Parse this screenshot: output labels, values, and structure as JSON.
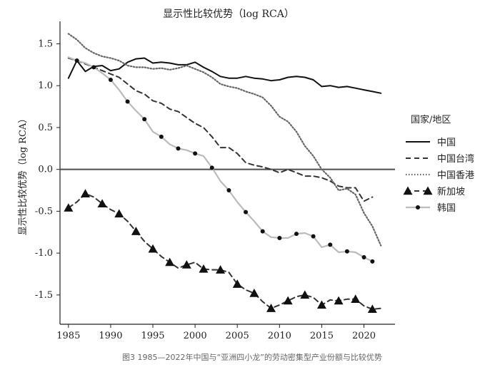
{
  "chart_data": {
    "type": "line",
    "title": "显示性比较优势（log RCA）",
    "ylabel": "显示性比较优势（log RCA）",
    "xlabel": "",
    "xlim": [
      1984,
      2023
    ],
    "ylim": [
      -1.85,
      1.7
    ],
    "x_ticks": [
      1985,
      1990,
      1995,
      2000,
      2005,
      2010,
      2015,
      2020
    ],
    "y_ticks": [
      1.5,
      1.0,
      0.5,
      0.0,
      -0.5,
      -1.0,
      -1.5
    ],
    "y_tick_labels": [
      "1.5",
      "1.0",
      "0.5",
      "0.0",
      "-0.5",
      "-1.0",
      "-1.5"
    ],
    "reference_line": 0.0,
    "grid": false,
    "legend": {
      "title": "国家/地区",
      "placement": "right"
    },
    "caption": "图3 1985—2022年中国与“亚洲四小龙”的劳动密集型产业份额与比较优势",
    "series": [
      {
        "name": "中国",
        "style": "solid",
        "color": "#111111",
        "x": [
          1985,
          1986,
          1987,
          1988,
          1989,
          1990,
          1991,
          1992,
          1993,
          1994,
          1995,
          1996,
          1997,
          1998,
          1999,
          2000,
          2001,
          2002,
          2003,
          2004,
          2005,
          2006,
          2007,
          2008,
          2009,
          2010,
          2011,
          2012,
          2013,
          2014,
          2015,
          2016,
          2017,
          2018,
          2019,
          2020,
          2021,
          2022
        ],
        "values": [
          1.09,
          1.3,
          1.17,
          1.23,
          1.24,
          1.18,
          1.2,
          1.28,
          1.32,
          1.33,
          1.27,
          1.28,
          1.27,
          1.25,
          1.25,
          1.28,
          1.22,
          1.17,
          1.11,
          1.09,
          1.09,
          1.11,
          1.09,
          1.08,
          1.06,
          1.07,
          1.1,
          1.11,
          1.1,
          1.07,
          0.99,
          1.0,
          0.98,
          0.99,
          0.97,
          0.95,
          0.93,
          0.91
        ]
      },
      {
        "name": "中国台湾",
        "style": "dashed",
        "color": "#333333",
        "x": [
          1985,
          1986,
          1987,
          1988,
          1989,
          1990,
          1991,
          1992,
          1993,
          1994,
          1995,
          1996,
          1997,
          1998,
          1999,
          2000,
          2001,
          2002,
          2003,
          2004,
          2005,
          2006,
          2007,
          2008,
          2009,
          2010,
          2011,
          2012,
          2013,
          2014,
          2015,
          2016,
          2017,
          2018,
          2019,
          2020,
          2021
        ],
        "values": [
          1.33,
          1.3,
          1.26,
          1.22,
          1.18,
          1.14,
          1.1,
          1.02,
          0.94,
          0.9,
          0.82,
          0.79,
          0.72,
          0.69,
          0.62,
          0.55,
          0.5,
          0.39,
          0.26,
          0.26,
          0.19,
          0.08,
          0.05,
          0.03,
          0.0,
          -0.04,
          0.0,
          -0.04,
          -0.08,
          -0.08,
          -0.1,
          -0.14,
          -0.2,
          -0.22,
          -0.22,
          -0.38,
          -0.33
        ]
      },
      {
        "name": "中国香港",
        "style": "dotted",
        "color": "#555555",
        "x": [
          1985,
          1986,
          1987,
          1988,
          1989,
          1990,
          1991,
          1992,
          1993,
          1994,
          1995,
          1996,
          1997,
          1998,
          1999,
          2000,
          2001,
          2002,
          2003,
          2004,
          2005,
          2006,
          2007,
          2008,
          2009,
          2010,
          2011,
          2012,
          2013,
          2014,
          2015,
          2016,
          2017,
          2018,
          2019,
          2020,
          2021,
          2022
        ],
        "values": [
          1.62,
          1.55,
          1.45,
          1.39,
          1.35,
          1.33,
          1.3,
          1.24,
          1.22,
          1.22,
          1.2,
          1.21,
          1.19,
          1.21,
          1.24,
          1.2,
          1.16,
          1.1,
          1.02,
          0.99,
          0.97,
          0.93,
          0.9,
          0.86,
          0.76,
          0.63,
          0.57,
          0.45,
          0.28,
          0.16,
          0.0,
          -0.1,
          -0.25,
          -0.23,
          -0.3,
          -0.52,
          -0.68,
          -0.91
        ]
      },
      {
        "name": "新加坡",
        "style": "dashed",
        "marker": "triangle",
        "color": "#333333",
        "x": [
          1985,
          1986,
          1987,
          1988,
          1989,
          1990,
          1991,
          1992,
          1993,
          1994,
          1995,
          1996,
          1997,
          1998,
          1999,
          2000,
          2001,
          2002,
          2003,
          2004,
          2005,
          2006,
          2007,
          2008,
          2009,
          2010,
          2011,
          2012,
          2013,
          2014,
          2015,
          2016,
          2017,
          2018,
          2019,
          2020,
          2021,
          2022
        ],
        "values": [
          -0.46,
          -0.39,
          -0.29,
          -0.33,
          -0.41,
          -0.48,
          -0.53,
          -0.62,
          -0.74,
          -0.86,
          -0.95,
          -1.04,
          -1.11,
          -1.18,
          -1.14,
          -1.11,
          -1.19,
          -1.2,
          -1.2,
          -1.23,
          -1.37,
          -1.44,
          -1.48,
          -1.58,
          -1.66,
          -1.62,
          -1.57,
          -1.52,
          -1.5,
          -1.53,
          -1.62,
          -1.56,
          -1.57,
          -1.55,
          -1.55,
          -1.63,
          -1.67,
          -1.66
        ]
      },
      {
        "name": "韩国",
        "style": "solid-light",
        "marker": "dot",
        "color": "#bbbbbb",
        "x": [
          1985,
          1986,
          1987,
          1988,
          1989,
          1990,
          1991,
          1992,
          1993,
          1994,
          1995,
          1996,
          1997,
          1998,
          1999,
          2000,
          2001,
          2002,
          2003,
          2004,
          2005,
          2006,
          2007,
          2008,
          2009,
          2010,
          2011,
          2012,
          2013,
          2014,
          2015,
          2016,
          2017,
          2018,
          2019,
          2020,
          2021
        ],
        "values": [
          1.34,
          1.3,
          1.27,
          1.22,
          1.15,
          1.07,
          0.95,
          0.81,
          0.7,
          0.6,
          0.45,
          0.39,
          0.3,
          0.25,
          0.23,
          0.19,
          0.16,
          0.02,
          -0.14,
          -0.25,
          -0.39,
          -0.51,
          -0.62,
          -0.74,
          -0.81,
          -0.82,
          -0.82,
          -0.77,
          -0.76,
          -0.8,
          -0.93,
          -0.9,
          -0.99,
          -0.98,
          -0.99,
          -1.05,
          -1.1
        ]
      }
    ]
  }
}
